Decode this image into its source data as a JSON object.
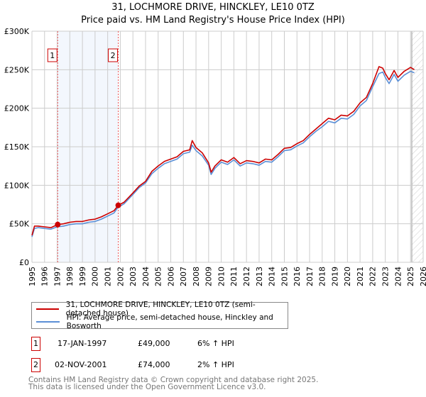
{
  "chart_data": {
    "type": "line",
    "title": "31, LOCHMORE DRIVE, HINCKLEY, LE10 0TZ",
    "subtitle": "Price paid vs. HM Land Registry's House Price Index (HPI)",
    "xlim": [
      1995,
      2026
    ],
    "ylim": [
      0,
      300000
    ],
    "x_ticks": [
      "1995",
      "1996",
      "1997",
      "1998",
      "1999",
      "2000",
      "2001",
      "2002",
      "2003",
      "2004",
      "2005",
      "2006",
      "2007",
      "2008",
      "2009",
      "2010",
      "2011",
      "2012",
      "2013",
      "2014",
      "2015",
      "2016",
      "2017",
      "2018",
      "2019",
      "2020",
      "2021",
      "2022",
      "2023",
      "2024",
      "2025",
      "2026"
    ],
    "y_ticks": [
      {
        "v": 0,
        "label": "£0"
      },
      {
        "v": 50000,
        "label": "£50K"
      },
      {
        "v": 100000,
        "label": "£100K"
      },
      {
        "v": 150000,
        "label": "£150K"
      },
      {
        "v": 200000,
        "label": "£200K"
      },
      {
        "v": 250000,
        "label": "£250K"
      },
      {
        "v": 300000,
        "label": "£300K"
      }
    ],
    "grid": true,
    "series": [
      {
        "name": "31, LOCHMORE DRIVE, HINCKLEY, LE10 0TZ (semi-detached house)",
        "color": "#cc0000",
        "points": [
          [
            1995,
            35
          ],
          [
            1995.2,
            47
          ],
          [
            1995.5,
            47
          ],
          [
            1996,
            46
          ],
          [
            1996.5,
            45
          ],
          [
            1997.04,
            49
          ],
          [
            1997.5,
            50
          ],
          [
            1998,
            52
          ],
          [
            1998.5,
            53
          ],
          [
            1999,
            53
          ],
          [
            1999.5,
            55
          ],
          [
            2000,
            56
          ],
          [
            2000.5,
            59
          ],
          [
            2001,
            63
          ],
          [
            2001.5,
            67
          ],
          [
            2001.84,
            74
          ],
          [
            2002.3,
            78
          ],
          [
            2003,
            90
          ],
          [
            2003.5,
            99
          ],
          [
            2004,
            105
          ],
          [
            2004.5,
            118
          ],
          [
            2005,
            125
          ],
          [
            2005.5,
            131
          ],
          [
            2006,
            134
          ],
          [
            2006.5,
            137
          ],
          [
            2007,
            144
          ],
          [
            2007.5,
            146
          ],
          [
            2007.7,
            158
          ],
          [
            2008,
            149
          ],
          [
            2008.5,
            142
          ],
          [
            2009,
            129
          ],
          [
            2009.2,
            117
          ],
          [
            2009.5,
            125
          ],
          [
            2010,
            133
          ],
          [
            2010.5,
            130
          ],
          [
            2011,
            136
          ],
          [
            2011.5,
            128
          ],
          [
            2012,
            132
          ],
          [
            2012.5,
            131
          ],
          [
            2013,
            129
          ],
          [
            2013.5,
            134
          ],
          [
            2014,
            133
          ],
          [
            2014.5,
            140
          ],
          [
            2015,
            148
          ],
          [
            2015.5,
            149
          ],
          [
            2016,
            154
          ],
          [
            2016.5,
            158
          ],
          [
            2017,
            166
          ],
          [
            2017.5,
            173
          ],
          [
            2018,
            180
          ],
          [
            2018.5,
            187
          ],
          [
            2019,
            185
          ],
          [
            2019.5,
            191
          ],
          [
            2020,
            190
          ],
          [
            2020.5,
            196
          ],
          [
            2021,
            207
          ],
          [
            2021.5,
            214
          ],
          [
            2022,
            232
          ],
          [
            2022.5,
            254
          ],
          [
            2022.8,
            252
          ],
          [
            2023,
            245
          ],
          [
            2023.3,
            237
          ],
          [
            2023.7,
            249
          ],
          [
            2024,
            240
          ],
          [
            2024.5,
            248
          ],
          [
            2025,
            253
          ],
          [
            2025.3,
            250
          ]
        ]
      },
      {
        "name": "HPI: Average price, semi-detached house, Hinckley and Bosworth",
        "color": "#5b8fd6",
        "points": [
          [
            1995,
            33
          ],
          [
            1995.2,
            44
          ],
          [
            1995.5,
            45
          ],
          [
            1996,
            44
          ],
          [
            1996.5,
            43
          ],
          [
            1997,
            46
          ],
          [
            1997.5,
            47
          ],
          [
            1998,
            49
          ],
          [
            1998.5,
            50
          ],
          [
            1999,
            50
          ],
          [
            1999.5,
            52
          ],
          [
            2000,
            53
          ],
          [
            2000.5,
            56
          ],
          [
            2001,
            60
          ],
          [
            2001.5,
            64
          ],
          [
            2001.8,
            71
          ],
          [
            2002.3,
            76
          ],
          [
            2003,
            88
          ],
          [
            2003.5,
            97
          ],
          [
            2004,
            103
          ],
          [
            2004.5,
            115
          ],
          [
            2005,
            122
          ],
          [
            2005.5,
            128
          ],
          [
            2006,
            131
          ],
          [
            2006.5,
            134
          ],
          [
            2007,
            141
          ],
          [
            2007.5,
            143
          ],
          [
            2007.7,
            152
          ],
          [
            2008,
            145
          ],
          [
            2008.5,
            138
          ],
          [
            2009,
            126
          ],
          [
            2009.2,
            114
          ],
          [
            2009.5,
            122
          ],
          [
            2010,
            130
          ],
          [
            2010.5,
            127
          ],
          [
            2011,
            133
          ],
          [
            2011.5,
            125
          ],
          [
            2012,
            129
          ],
          [
            2012.5,
            128
          ],
          [
            2013,
            126
          ],
          [
            2013.5,
            131
          ],
          [
            2014,
            130
          ],
          [
            2014.5,
            137
          ],
          [
            2015,
            145
          ],
          [
            2015.5,
            146
          ],
          [
            2016,
            151
          ],
          [
            2016.5,
            155
          ],
          [
            2017,
            163
          ],
          [
            2017.5,
            170
          ],
          [
            2018,
            176
          ],
          [
            2018.5,
            183
          ],
          [
            2019,
            181
          ],
          [
            2019.5,
            187
          ],
          [
            2020,
            186
          ],
          [
            2020.5,
            192
          ],
          [
            2021,
            203
          ],
          [
            2021.5,
            210
          ],
          [
            2022,
            228
          ],
          [
            2022.5,
            245
          ],
          [
            2022.8,
            247
          ],
          [
            2023,
            240
          ],
          [
            2023.3,
            232
          ],
          [
            2023.7,
            244
          ],
          [
            2024,
            235
          ],
          [
            2024.5,
            243
          ],
          [
            2025,
            248
          ],
          [
            2025.3,
            246
          ]
        ]
      }
    ],
    "value_units": "thousands GBP",
    "sales": [
      {
        "label": "1",
        "x": 1997.04,
        "value": 49000
      },
      {
        "label": "2",
        "x": 2001.84,
        "value": 74000
      }
    ],
    "forecast_start": 2025.1
  },
  "sales_table": [
    {
      "num": "1",
      "date": "17-JAN-1997",
      "price": "£49,000",
      "hpi": "6% ↑ HPI"
    },
    {
      "num": "2",
      "date": "02-NOV-2001",
      "price": "£74,000",
      "hpi": "2% ↑ HPI"
    }
  ],
  "footer": {
    "line1": "Contains HM Land Registry data © Crown copyright and database right 2025.",
    "line2": "This data is licensed under the Open Government Licence v3.0."
  }
}
